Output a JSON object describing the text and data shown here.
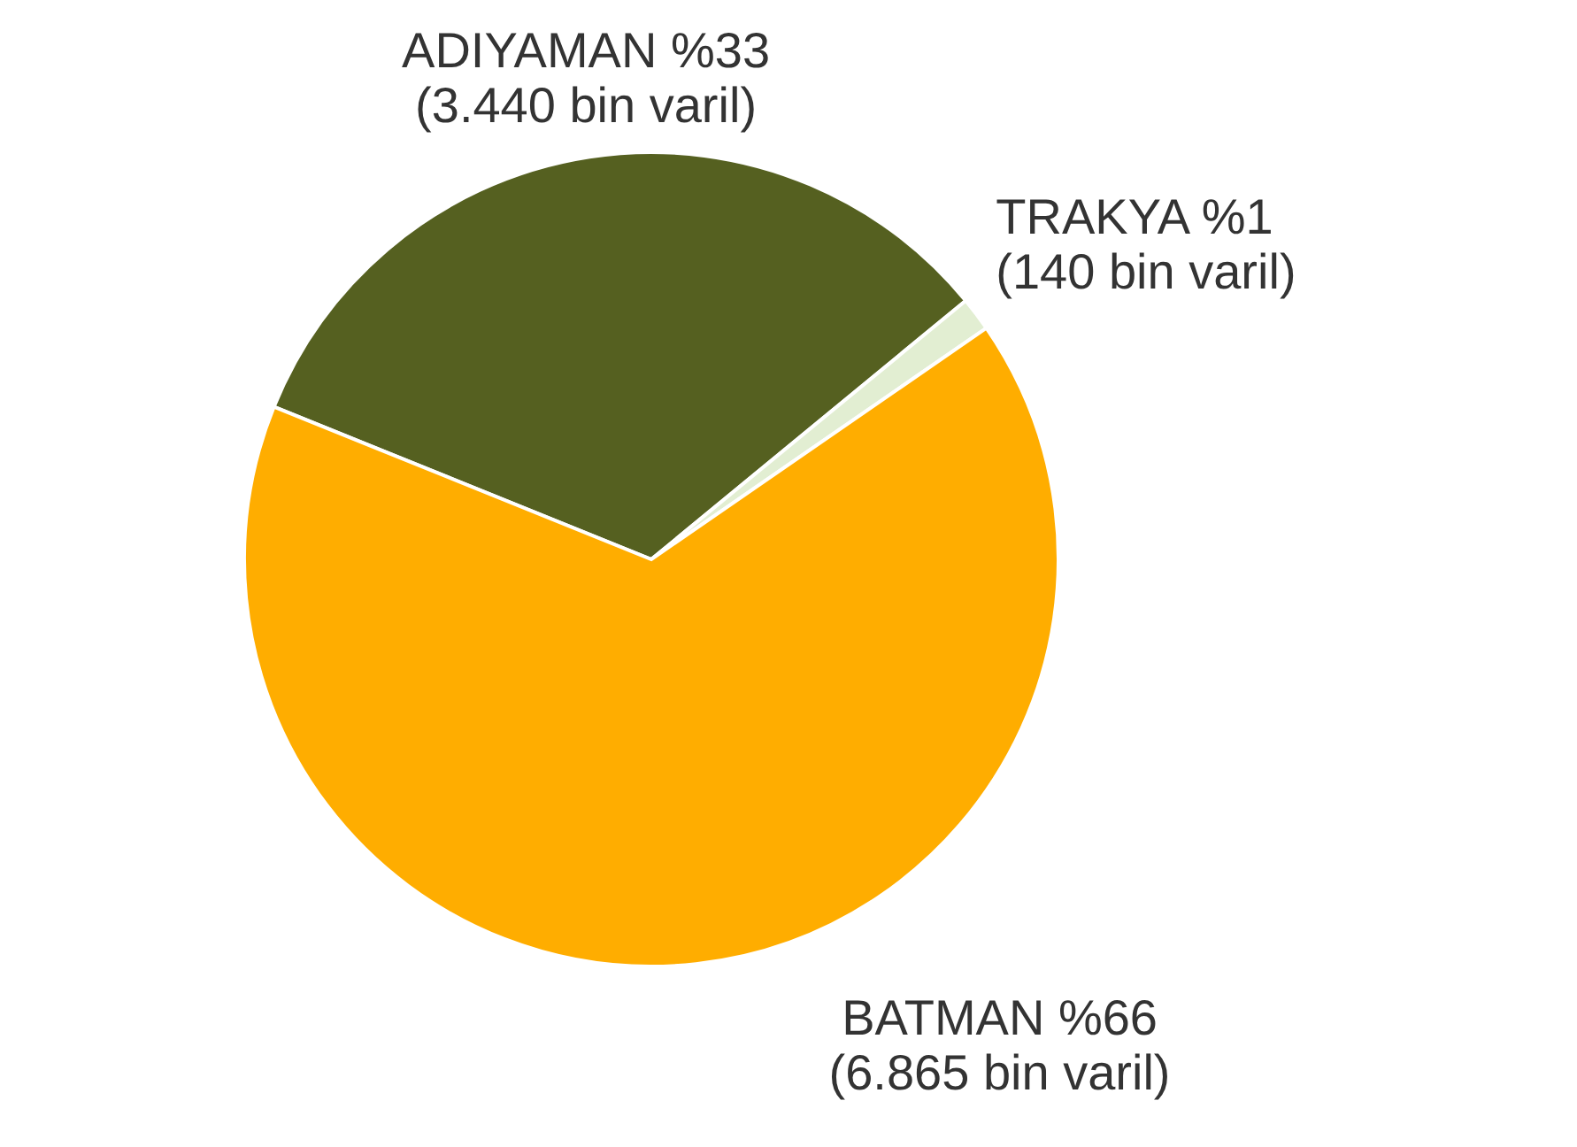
{
  "chart_data": {
    "type": "pie",
    "categories": [
      "ADIYAMAN",
      "TRAKYA",
      "BATMAN"
    ],
    "values": [
      3440,
      140,
      6865
    ],
    "colors": [
      "#556020",
      "#e2eed2",
      "#ffad00"
    ],
    "value_labels": [
      "%33 (3.440 bin varil)",
      "%1 (140 bin varil)",
      "%66 (6.865 bin varil)"
    ]
  }
}
